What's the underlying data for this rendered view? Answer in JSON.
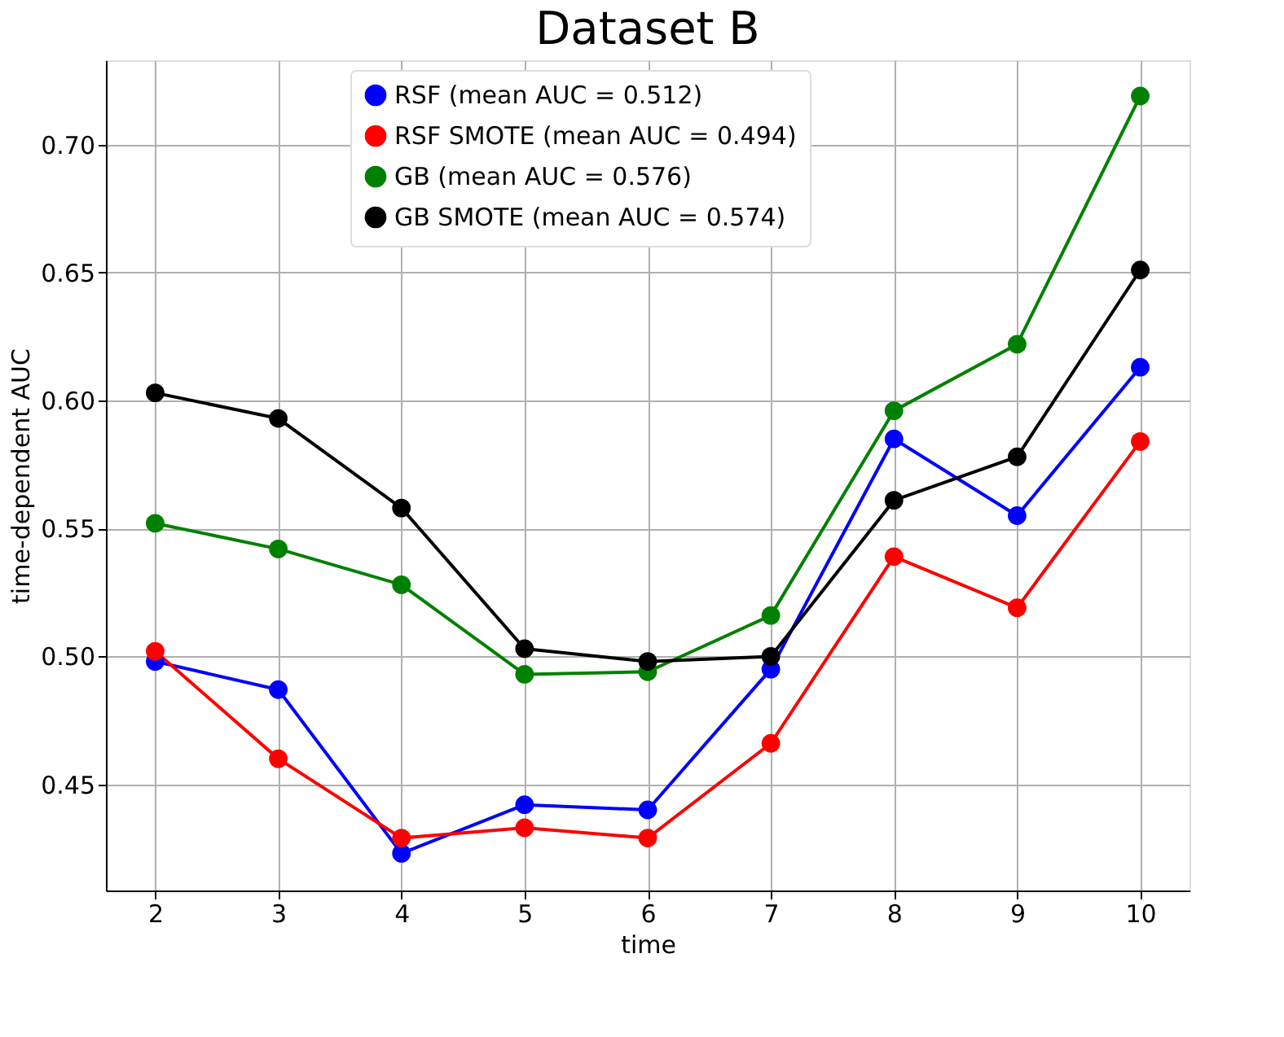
{
  "chart_data": {
    "type": "line",
    "title": "Dataset B",
    "xlabel": "time",
    "ylabel": "time-dependent AUC",
    "x": [
      2,
      3,
      4,
      5,
      6,
      7,
      8,
      9,
      10
    ],
    "series": [
      {
        "name": "RSF (mean AUC = 0.512)",
        "color": "#0000ff",
        "values": [
          0.498,
          0.487,
          0.423,
          0.442,
          0.44,
          0.495,
          0.585,
          0.555,
          0.613
        ]
      },
      {
        "name": "RSF SMOTE (mean AUC = 0.494)",
        "color": "#ff0000",
        "values": [
          0.502,
          0.46,
          0.429,
          0.433,
          0.429,
          0.466,
          0.539,
          0.519,
          0.584
        ]
      },
      {
        "name": "GB (mean AUC = 0.576)",
        "color": "#008000",
        "values": [
          0.552,
          0.542,
          0.528,
          0.493,
          0.494,
          0.516,
          0.596,
          0.622,
          0.719
        ]
      },
      {
        "name": "GB SMOTE (mean AUC = 0.574)",
        "color": "#000000",
        "values": [
          0.603,
          0.593,
          0.558,
          0.503,
          0.498,
          0.5,
          0.561,
          0.578,
          0.651
        ]
      }
    ],
    "xlim": [
      1.6,
      10.4
    ],
    "xticks": [
      2,
      3,
      4,
      5,
      6,
      7,
      8,
      9,
      10
    ],
    "ylim": [
      0.4085,
      0.733
    ],
    "yticks": [
      0.45,
      {
        "value": 0.5,
        "label": "0.50"
      },
      0.55,
      {
        "value": 0.6,
        "label": "0.60"
      },
      0.65,
      {
        "value": 0.7,
        "label": "0.70"
      }
    ],
    "grid": true,
    "legend": "top",
    "marker": "circle",
    "line_style": "solid"
  }
}
